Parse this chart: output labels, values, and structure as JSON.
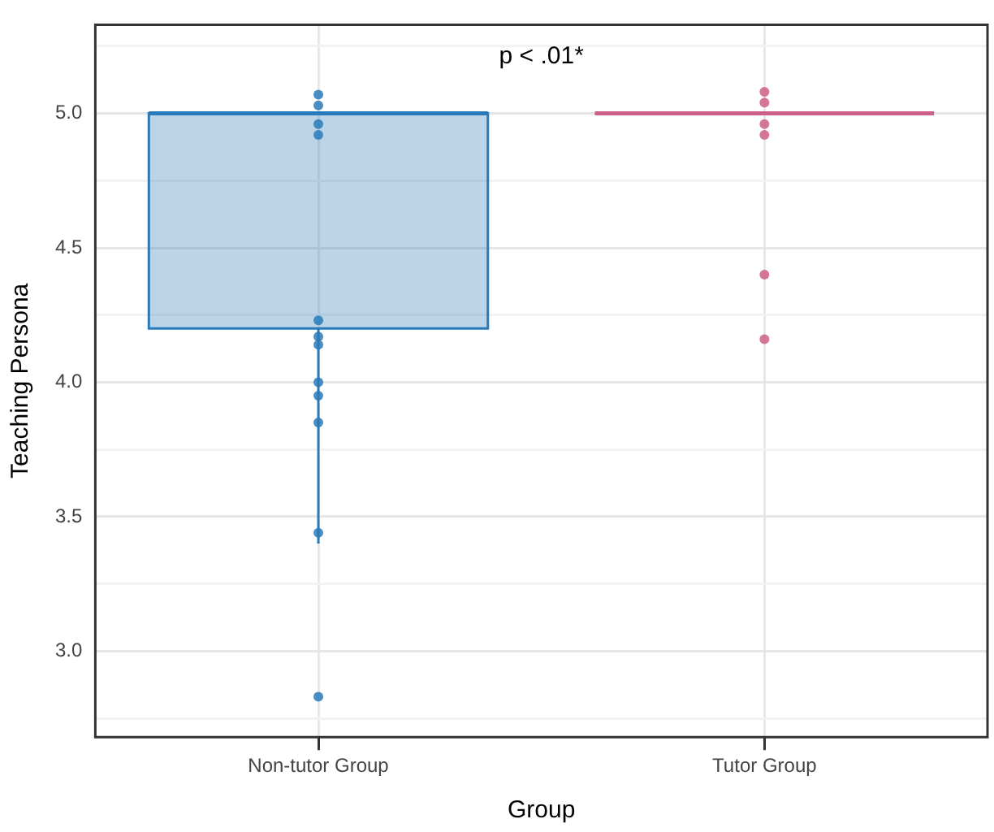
{
  "chart_data": {
    "type": "box",
    "categories": [
      "Non-tutor Group",
      "Tutor Group"
    ],
    "xlabel": "Group",
    "ylabel": "Teaching Persona",
    "boxes": [
      {
        "low": 3.4,
        "q1": 4.2,
        "median": 5.0,
        "q3": 5.0,
        "high": 5.0
      },
      {
        "low": 5.0,
        "q1": 5.0,
        "median": 5.0,
        "q3": 5.0,
        "high": 5.0
      }
    ],
    "colors": [
      "#2a7ab9",
      "#cc5f87"
    ],
    "series": [
      {
        "type": "scatter",
        "color": "#2a7ab9",
        "x": [
          "Non-tutor Group",
          "Non-tutor Group",
          "Non-tutor Group",
          "Non-tutor Group",
          "Non-tutor Group",
          "Non-tutor Group",
          "Non-tutor Group",
          "Non-tutor Group",
          "Non-tutor Group",
          "Non-tutor Group",
          "Non-tutor Group",
          "Non-tutor Group"
        ],
        "values": [
          5.07,
          5.03,
          4.96,
          4.92,
          4.23,
          4.17,
          4.14,
          4.0,
          3.95,
          3.85,
          3.44,
          2.83
        ]
      },
      {
        "type": "scatter",
        "color": "#cc5f87",
        "x": [
          "Tutor Group",
          "Tutor Group",
          "Tutor Group",
          "Tutor Group",
          "Tutor Group",
          "Tutor Group"
        ],
        "values": [
          5.08,
          5.04,
          4.96,
          4.92,
          4.4,
          4.16
        ]
      }
    ],
    "ylim": [
      2.68,
      5.33
    ],
    "yticks": [
      {
        "value": 2.75,
        "label": null
      },
      {
        "value": 3,
        "label": "3.0"
      },
      {
        "value": 3.25,
        "label": null
      },
      3.5,
      {
        "value": 3.75,
        "label": null
      },
      {
        "value": 4,
        "label": "4.0"
      },
      {
        "value": 4.25,
        "label": null
      },
      4.5,
      {
        "value": 4.75,
        "label": null
      },
      {
        "value": 5,
        "label": "5.0"
      },
      {
        "value": 5.25,
        "label": null
      }
    ],
    "grid": true,
    "legend": false,
    "marker": "circle",
    "annotations": [
      "p < .01*"
    ]
  }
}
